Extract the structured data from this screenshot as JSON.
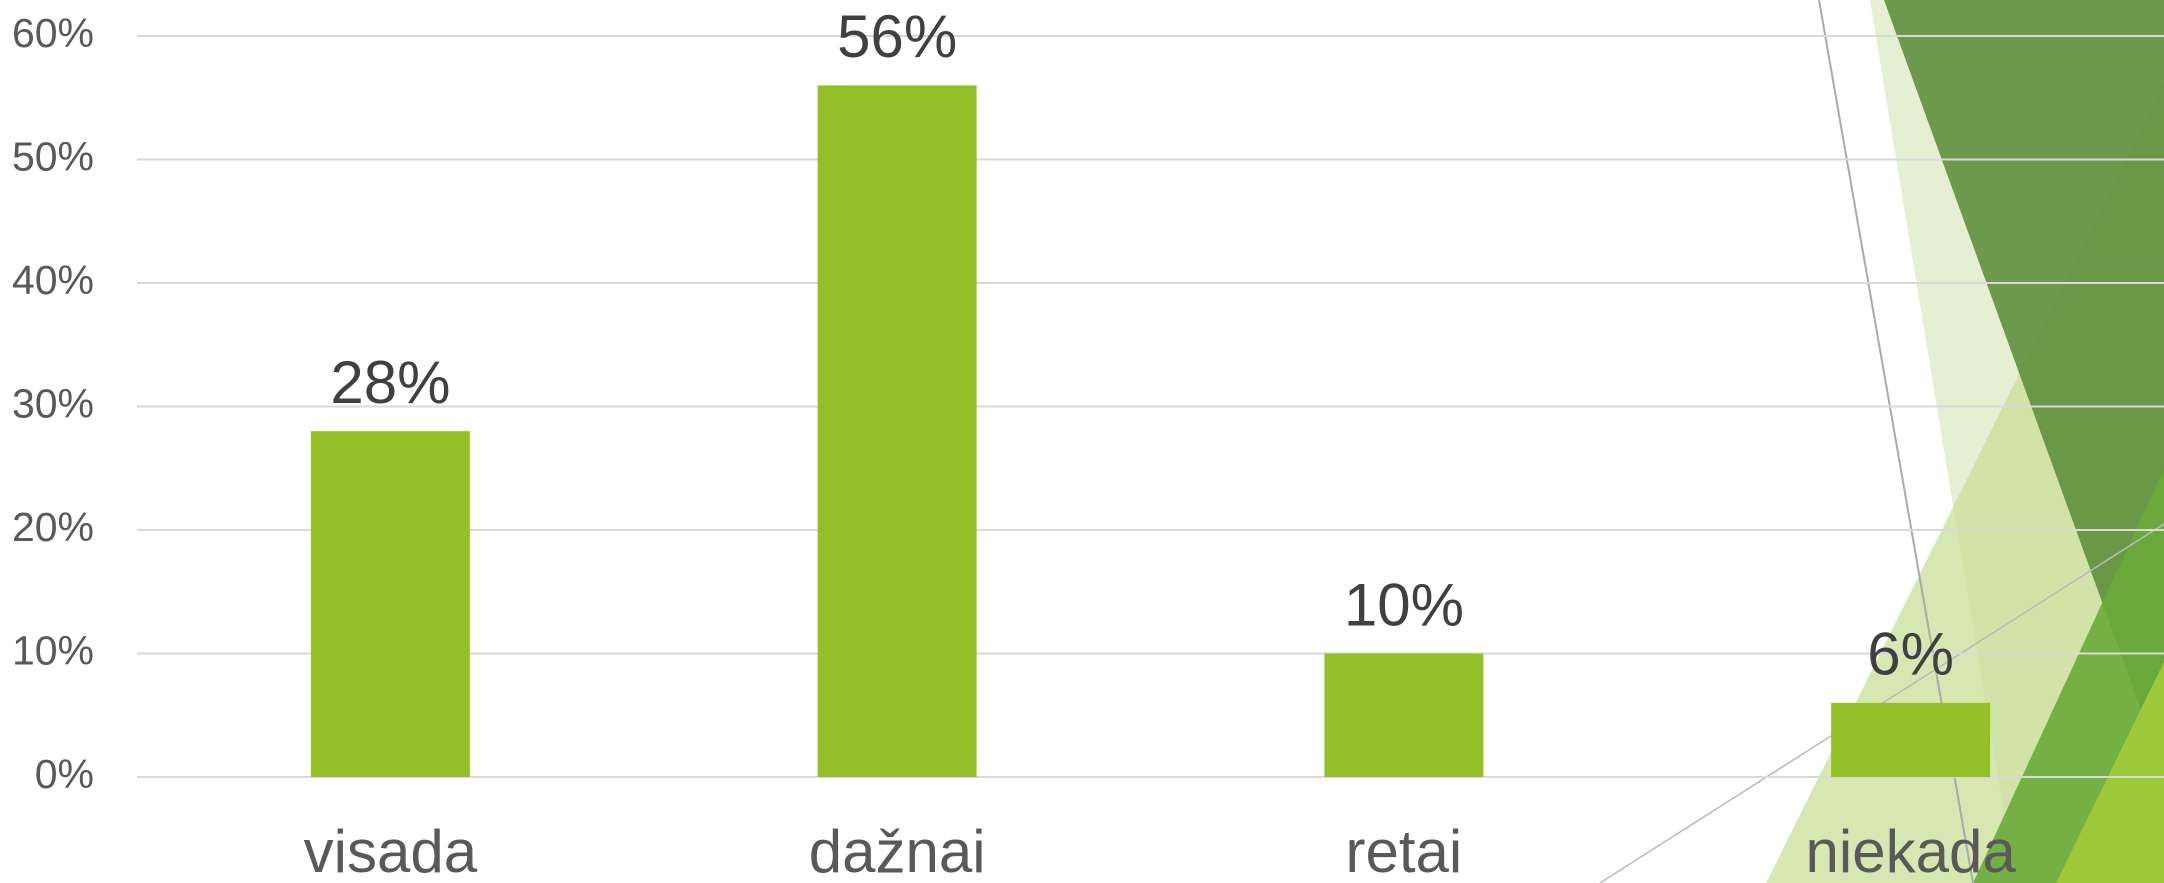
{
  "chart_data": {
    "type": "bar",
    "categories": [
      "visada",
      "dažnai",
      "retai",
      "niekada"
    ],
    "values": [
      28,
      56,
      10,
      6
    ],
    "value_labels": [
      "28%",
      "56%",
      "10%",
      "6%"
    ],
    "color": "#92c026",
    "ylim": [
      0,
      60
    ],
    "yticks": [
      {
        "value": 0,
        "label": "0%"
      },
      {
        "value": 10,
        "label": "10%"
      },
      {
        "value": 20,
        "label": "20%"
      },
      {
        "value": 30,
        "label": "30%"
      },
      {
        "value": 40,
        "label": "40%"
      },
      {
        "value": 50,
        "label": "50%"
      },
      {
        "value": 60,
        "label": "60%"
      }
    ],
    "grid": true
  }
}
